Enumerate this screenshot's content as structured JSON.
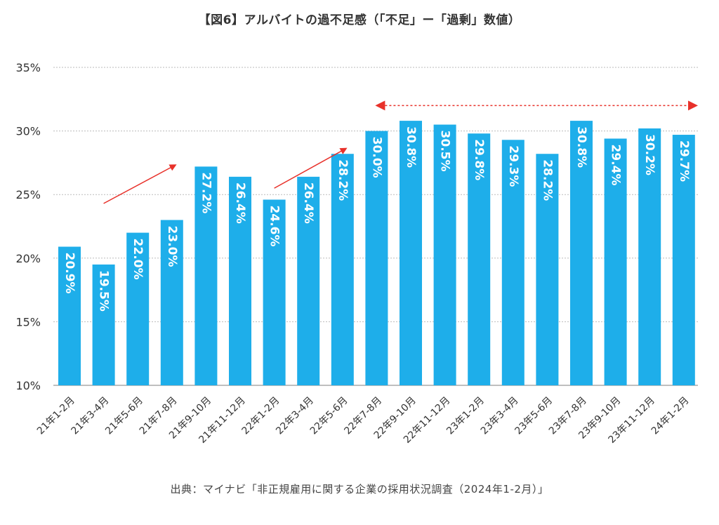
{
  "title": "【図6】アルバイトの過不足感（「不足」ー「過剰」数値）",
  "source": "出典：マイナビ「非正規雇用に関する企業の採用状況調査（2024年1-2月）」",
  "colors": {
    "bar": "#1eaeea",
    "grid": "#bbbbbb",
    "arrow": "#e8312a"
  },
  "chart_data": {
    "type": "bar",
    "categories": [
      "21年1-2月",
      "21年3-4月",
      "21年5-6月",
      "21年7-8月",
      "21年9-10月",
      "21年11-12月",
      "22年1-2月",
      "22年3-4月",
      "22年5-6月",
      "22年7-8月",
      "22年9-10月",
      "22年11-12月",
      "23年1-2月",
      "23年3-4月",
      "23年5-6月",
      "23年7-8月",
      "23年9-10月",
      "23年11-12月",
      "24年1-2月"
    ],
    "values": [
      20.9,
      19.5,
      22.0,
      23.0,
      27.2,
      26.4,
      24.6,
      26.4,
      28.2,
      30.0,
      30.8,
      30.5,
      29.8,
      29.3,
      28.2,
      30.8,
      29.4,
      30.2,
      29.7
    ],
    "data_labels": [
      "20.9%",
      "19.5%",
      "22.0%",
      "23.0%",
      "27.2%",
      "26.4%",
      "24.6%",
      "26.4%",
      "28.2%",
      "30.0%",
      "30.8%",
      "30.5%",
      "29.8%",
      "29.3%",
      "28.2%",
      "30.8%",
      "29.4%",
      "30.2%",
      "29.7%"
    ],
    "ylim": [
      10,
      35
    ],
    "yticks": [
      10,
      15,
      20,
      25,
      30,
      35
    ],
    "ytick_labels": [
      "10%",
      "15%",
      "20%",
      "25%",
      "30%",
      "35%"
    ],
    "grid": true,
    "legend": "none",
    "annotations": [
      {
        "kind": "arrow",
        "from": {
          "x": "21年3-4月",
          "y": 24.3
        },
        "to": {
          "x": "21年7-8月",
          "y": 27.1
        }
      },
      {
        "kind": "arrow",
        "from": {
          "x": "22年1-2月",
          "y": 25.5
        },
        "to": {
          "x": "22年5-6月",
          "y": 28.4
        }
      },
      {
        "kind": "double-dashed-arrow",
        "from": {
          "x": "22年7-8月",
          "y": 32.0
        },
        "to": {
          "x": "24年1-2月",
          "y": 32.0
        }
      }
    ]
  }
}
